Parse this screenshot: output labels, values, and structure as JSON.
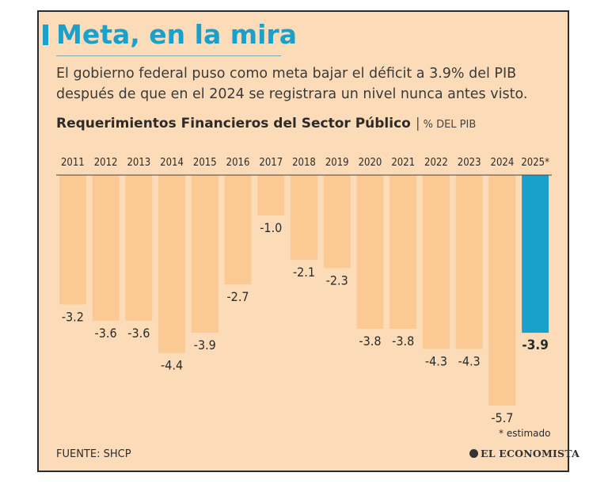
{
  "header": {
    "title": "Meta, en la mira",
    "subtitle": "El gobierno federal puso como meta bajar el déficit a 3.9% del PIB después de que en el 2024 se registrara un nivel nunca antes visto."
  },
  "chart_title": {
    "main": "Requerimientos Financieros del Sector Público",
    "separator": "|",
    "unit": "% DEL PIB"
  },
  "colors": {
    "background": "#fcdcb8",
    "bar": "#fbc994",
    "bar_highlight": "#1aa1cb",
    "title": "#1aa1cb",
    "text": "#2b2b2b"
  },
  "chart_data": {
    "type": "bar",
    "categories": [
      "2011",
      "2012",
      "2013",
      "2014",
      "2015",
      "2016",
      "2017",
      "2018",
      "2019",
      "2020",
      "2021",
      "2022",
      "2023",
      "2024",
      "2025*"
    ],
    "values": [
      -3.2,
      -3.6,
      -3.6,
      -4.4,
      -3.9,
      -2.7,
      -1.0,
      -2.1,
      -2.3,
      -3.8,
      -3.8,
      -4.3,
      -4.3,
      -5.7,
      -3.9
    ],
    "value_labels": [
      "-3.2",
      "-3.6",
      "-3.6",
      "-4.4",
      "-3.9",
      "-2.7",
      "-1.0",
      "-2.1",
      "-2.3",
      "-3.8",
      "-3.8",
      "-4.3",
      "-4.3",
      "-5.7",
      "-3.9"
    ],
    "highlight": "2025*",
    "ylim": [
      -5.7,
      0
    ],
    "x_axis_position": "top",
    "grid": false,
    "legend": "none"
  },
  "footer": {
    "footnote": "* estimado",
    "source": "FUENTE: SHCP",
    "logo": "EL ECONOMISTA"
  }
}
